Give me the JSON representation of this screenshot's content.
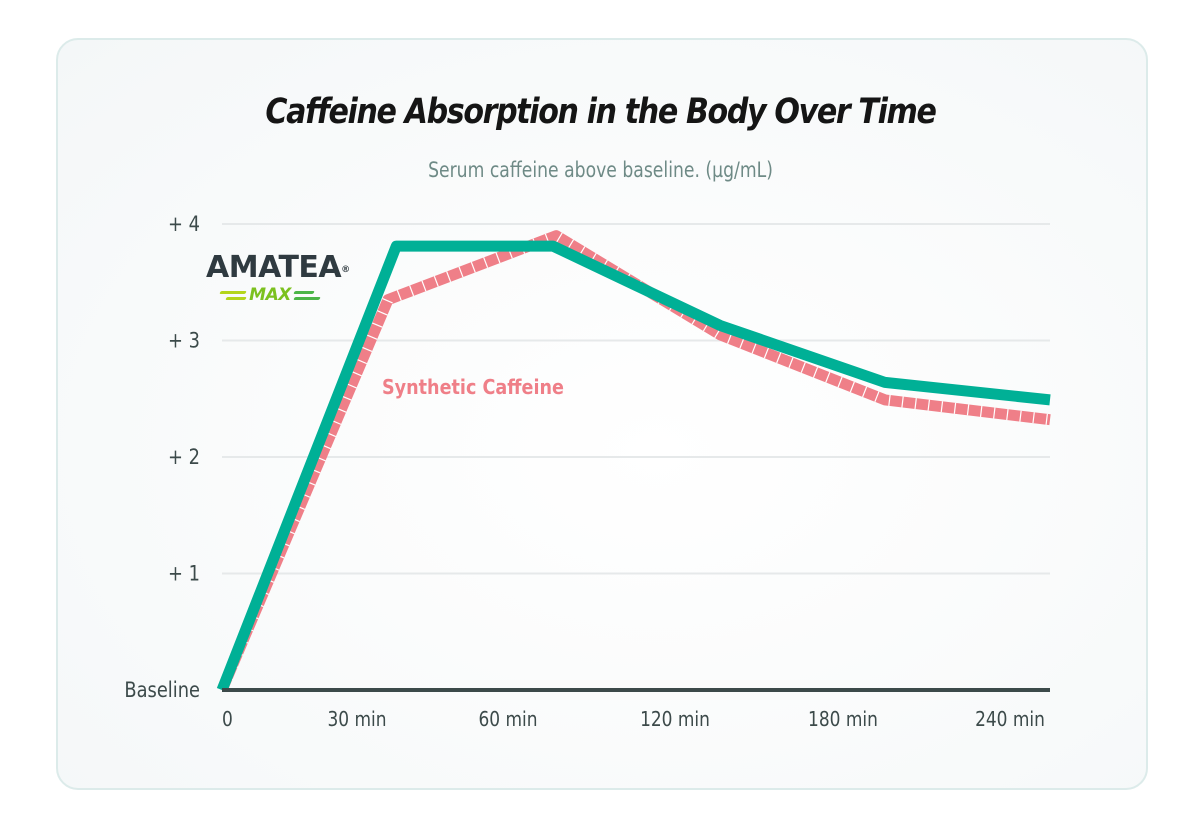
{
  "colors": {
    "amatea_series": "#00b096",
    "synthetic_series": "#ef7f88",
    "axis": "#3c4a4a",
    "grid": "#e6e9ea",
    "title": "#151515",
    "subtitle": "#6e8a86",
    "logo_dark": "#2f3a40",
    "logo_green": "#7cc11f"
  },
  "logo": {
    "brand": "AMATEA",
    "registered": "®",
    "sub": "MAX"
  },
  "chart_data": {
    "type": "line",
    "title": "Caffeine Absorption in the Body Over Time",
    "subtitle": "Serum caffeine above baseline. (µg/mL)",
    "xlabel": "",
    "ylabel": "Serum caffeine above baseline (µg/mL)",
    "categories": [
      "0",
      "30 min",
      "60 min",
      "120 min",
      "180 min",
      "240 min"
    ],
    "y_ticks": [
      {
        "value": 0,
        "label": "Baseline"
      },
      {
        "value": 1,
        "label": "+ 1"
      },
      {
        "value": 2,
        "label": "+ 2"
      },
      {
        "value": 3,
        "label": "+ 3"
      },
      {
        "value": 4,
        "label": "+ 4"
      }
    ],
    "ylim": [
      0,
      4
    ],
    "grid": true,
    "legend": "inline labels",
    "series": [
      {
        "name": "Amatea MAX",
        "label_type": "logo",
        "style": "solid",
        "x": [
          0,
          1.05,
          2.0,
          3.0,
          4.0,
          5.0
        ],
        "values": [
          0,
          3.81,
          3.81,
          3.13,
          2.64,
          2.49
        ]
      },
      {
        "name": "Synthetic Caffeine",
        "label_type": "text",
        "style": "segmented",
        "x": [
          0,
          1.0,
          2.02,
          3.0,
          4.0,
          5.0
        ],
        "values": [
          0,
          3.35,
          3.9,
          3.05,
          2.49,
          2.32
        ]
      }
    ]
  }
}
